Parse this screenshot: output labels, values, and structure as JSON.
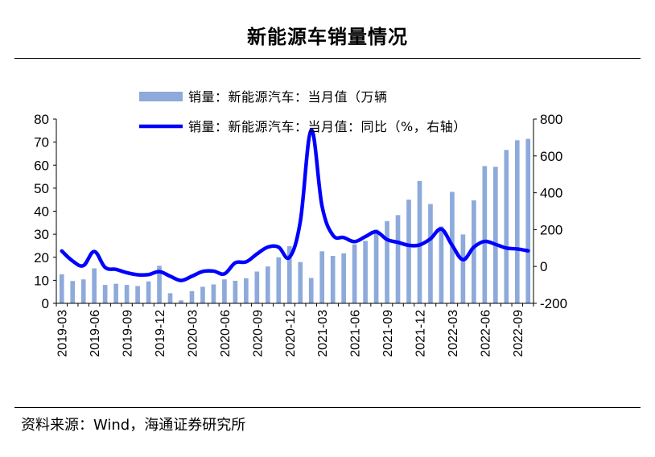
{
  "header": {
    "title": "新能源车销量情况"
  },
  "footer": {
    "source": "资料来源：Wind，海通证券研究所"
  },
  "chart_data": {
    "type": "bar+line",
    "title": "新能源车销量情况",
    "legend": [
      {
        "name": "销量：新能源汽车：当月值（万辆",
        "series": "volume",
        "style": "bar"
      },
      {
        "name": "销量：新能源汽车：当月值：同比（%，右轴）",
        "series": "yoy",
        "style": "line"
      }
    ],
    "categories": [
      "2019-03",
      "2019-04",
      "2019-05",
      "2019-06",
      "2019-07",
      "2019-08",
      "2019-09",
      "2019-10",
      "2019-11",
      "2019-12",
      "2020-01",
      "2020-02",
      "2020-03",
      "2020-04",
      "2020-05",
      "2020-06",
      "2020-07",
      "2020-08",
      "2020-09",
      "2020-10",
      "2020-11",
      "2020-12",
      "2021-01",
      "2021-02",
      "2021-03",
      "2021-04",
      "2021-05",
      "2021-06",
      "2021-07",
      "2021-08",
      "2021-09",
      "2021-10",
      "2021-11",
      "2021-12",
      "2022-01",
      "2022-02",
      "2022-03",
      "2022-04",
      "2022-05",
      "2022-06",
      "2022-07",
      "2022-08",
      "2022-09",
      "2022-10"
    ],
    "x_tick_labels": [
      "2019-03",
      "2019-06",
      "2019-09",
      "2019-12",
      "2020-03",
      "2020-06",
      "2020-09",
      "2020-12",
      "2021-03",
      "2021-06",
      "2021-09",
      "2021-12",
      "2022-03",
      "2022-06",
      "2022-09"
    ],
    "left_axis": {
      "min": 0,
      "max": 80,
      "ticks": [
        0,
        10,
        20,
        30,
        40,
        50,
        60,
        70,
        80
      ]
    },
    "right_axis": {
      "min": -200,
      "max": 800,
      "ticks": [
        -200,
        0,
        200,
        400,
        600,
        800
      ]
    },
    "series": [
      {
        "name": "volume",
        "axis": "left",
        "type": "bar",
        "color": "#8eaadb",
        "values": [
          12.6,
          9.7,
          10.4,
          15.2,
          8.0,
          8.5,
          8.0,
          7.5,
          9.5,
          16.3,
          4.4,
          1.3,
          5.3,
          7.2,
          8.2,
          10.4,
          9.8,
          10.9,
          13.8,
          16.0,
          20.0,
          24.8,
          17.9,
          11.0,
          22.6,
          20.6,
          21.7,
          25.6,
          27.1,
          32.1,
          35.7,
          38.3,
          45.0,
          53.1,
          43.1,
          33.4,
          48.4,
          29.9,
          44.7,
          59.6,
          59.3,
          66.6,
          70.8,
          71.4
        ]
      },
      {
        "name": "yoy",
        "axis": "right",
        "type": "line",
        "color": "#0000ff",
        "values": [
          84,
          30,
          5,
          81,
          -5,
          -16,
          -34,
          -45,
          -44,
          -28,
          -53,
          -76,
          -53,
          -27,
          -25,
          -40,
          20,
          25,
          68,
          105,
          105,
          50,
          245,
          740,
          328,
          170,
          157,
          135,
          162,
          188,
          146,
          131,
          115,
          117,
          150,
          203,
          115,
          37,
          105,
          136,
          120,
          100,
          95,
          85
        ]
      }
    ]
  }
}
